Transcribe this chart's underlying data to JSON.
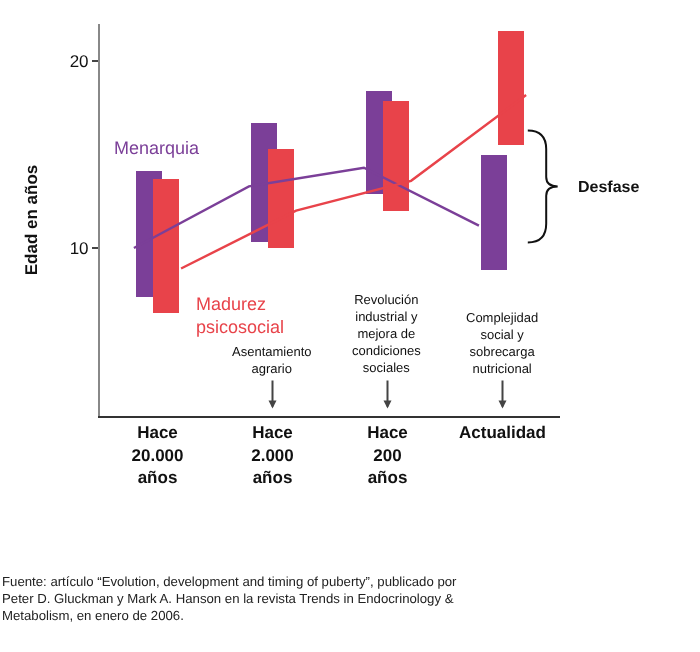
{
  "chart_data": {
    "type": "bar",
    "ylabel": "Edad en años",
    "categories": [
      "Hace\n20.000\naños",
      "Hace\n2.000\naños",
      "Hace\n200\naños",
      "Actualidad"
    ],
    "series": [
      {
        "name": "Menarquia",
        "color": "#7b3f98",
        "base": [
          7.4,
          10.3,
          12.9,
          8.8
        ],
        "values": [
          6.7,
          6.4,
          5.5,
          6.2
        ]
      },
      {
        "name": "Madurez psicosocial",
        "color": "#e8434a",
        "base": [
          6.5,
          10.0,
          12.0,
          15.5
        ],
        "values": [
          7.2,
          5.3,
          5.9,
          6.1
        ]
      },
      {
        "type": "line",
        "color": "#7b3f98",
        "values": [
          10.0,
          13.3,
          14.3,
          11.2
        ]
      },
      {
        "type": "line",
        "color": "#e8434a",
        "values": [
          8.9,
          12.0,
          13.6,
          18.2
        ]
      }
    ],
    "ylim": [
      1,
      22
    ],
    "yticks": [
      10,
      20
    ],
    "grid": false,
    "annotations": [
      "Asentamiento agrario",
      "Revolución industrial y mejora de condiciones sociales",
      "Complejidad social y sobrecarga nutricional",
      "Desfase",
      "Fuente: artículo “Evolution, development and timing of puberty”, publicado por\nPeter D. Gluckman y Mark A. Hanson en la revista Trends in Endocrinology &\nMetabolism, en enero de 2006."
    ]
  }
}
